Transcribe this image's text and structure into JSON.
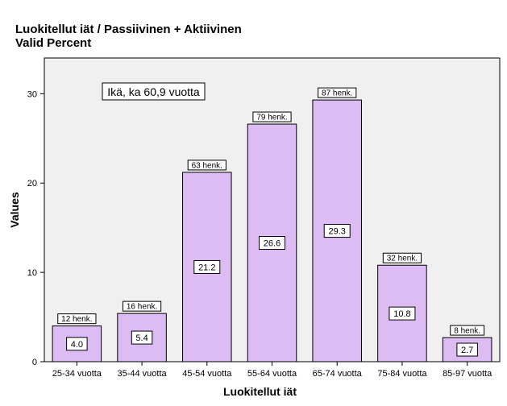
{
  "chart_data": {
    "type": "bar",
    "title": "Luokitellut iät / Passiivinen + Aktiivinen",
    "subtitle": "Valid Percent",
    "xlabel": "Luokitellut iät",
    "ylabel": "Values",
    "ylim": [
      0,
      34
    ],
    "yticks": [
      "0",
      "10",
      "20",
      "30"
    ],
    "categories": [
      "25-34 vuotta",
      "35-44 vuotta",
      "45-54 vuotta",
      "55-64 vuotta",
      "65-74 vuotta",
      "75-84 vuotta",
      "85-97 vuotta"
    ],
    "values": [
      4.0,
      5.4,
      21.2,
      26.6,
      29.3,
      10.8,
      2.7
    ],
    "value_labels": [
      "4.0",
      "5.4",
      "21.2",
      "26.6",
      "29.3",
      "10.8",
      "2.7"
    ],
    "count_labels": [
      "12 henk.",
      "16 henk.",
      "63 henk.",
      "79 henk.",
      "87 henk.",
      "32 henk.",
      "8 henk."
    ],
    "annotation": "Ikä, ka 60,9 vuotta",
    "grid": false,
    "legend": "none",
    "colors": {
      "bar_fill": "#dcbcf2",
      "bar_stroke": "#000000",
      "plot_bg": "#f0f0f0"
    }
  }
}
